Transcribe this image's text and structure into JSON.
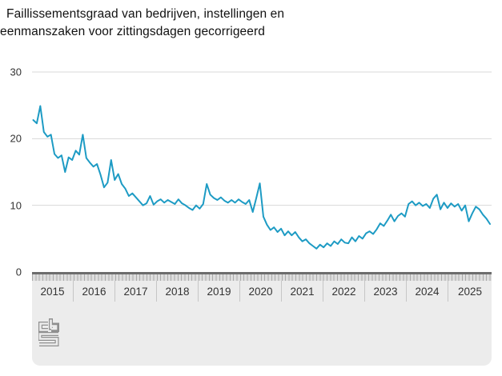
{
  "title": {
    "line1": "Faillissementsgraad van bedrijven, instellingen en",
    "line2": "eenmanszaken voor zittingsdagen gecorrigeerd"
  },
  "chart_data": {
    "type": "line",
    "title": "Faillissementsgraad van bedrijven, instellingen en eenmanszaken voor zittingsdagen gecorrigeerd",
    "xlabel": "",
    "ylabel": "",
    "x_start": "2015-01",
    "x_end": "2025-10",
    "frequency": "monthly",
    "ylim": [
      0,
      32
    ],
    "yticks": [
      0,
      10,
      20,
      30
    ],
    "gridlines": [
      10,
      20,
      30
    ],
    "grid": "horizontal-only",
    "legend_position": "none",
    "line_color": "#1d9bc4",
    "categories_years": [
      "2015",
      "2016",
      "2017",
      "2018",
      "2019",
      "2020",
      "2021",
      "2022",
      "2023",
      "2024",
      "2025"
    ],
    "series": [
      {
        "name": "Faillissementsgraad",
        "values": [
          22.8,
          22.3,
          24.9,
          21.0,
          20.3,
          20.6,
          17.7,
          17.1,
          17.5,
          15.0,
          17.2,
          16.8,
          18.2,
          17.6,
          20.6,
          17.1,
          16.4,
          15.8,
          16.2,
          14.6,
          12.7,
          13.4,
          16.8,
          13.8,
          14.7,
          13.2,
          12.5,
          11.4,
          11.8,
          11.2,
          10.6,
          10.0,
          10.3,
          11.4,
          10.1,
          10.6,
          10.9,
          10.4,
          10.8,
          10.5,
          10.2,
          10.9,
          10.3,
          10.0,
          9.6,
          9.3,
          10.0,
          9.5,
          10.2,
          13.2,
          11.6,
          11.1,
          10.8,
          11.2,
          10.7,
          10.4,
          10.8,
          10.4,
          10.9,
          10.5,
          10.2,
          10.8,
          9.0,
          11.1,
          13.3,
          8.3,
          7.1,
          6.3,
          6.7,
          6.0,
          6.5,
          5.5,
          6.1,
          5.5,
          6.0,
          5.2,
          4.6,
          4.9,
          4.3,
          3.9,
          3.5,
          4.1,
          3.7,
          4.3,
          3.9,
          4.6,
          4.2,
          4.9,
          4.4,
          4.3,
          5.2,
          4.6,
          5.4,
          5.0,
          5.8,
          6.1,
          5.7,
          6.4,
          7.3,
          6.9,
          7.7,
          8.6,
          7.6,
          8.4,
          8.8,
          8.3,
          10.2,
          10.6,
          10.0,
          10.4,
          9.9,
          10.2,
          9.6,
          11.0,
          11.6,
          9.4,
          10.4,
          9.6,
          10.3,
          9.8,
          10.2,
          9.2,
          10.0,
          7.6,
          8.8,
          9.8,
          9.4,
          8.6,
          8.0,
          7.2
        ]
      }
    ]
  },
  "colors": {
    "line": "#1d9bc4",
    "grid": "#d8d8d8",
    "panel_bg": "#ececec",
    "ruler_bar": "#6d6d6d",
    "tick": "#a9a9a9",
    "divider": "#c6c6c6",
    "axis_text": "#333333",
    "logo": "#8f8f8f"
  },
  "logo": {
    "name": "cbs-logo",
    "letters": "cbs"
  }
}
